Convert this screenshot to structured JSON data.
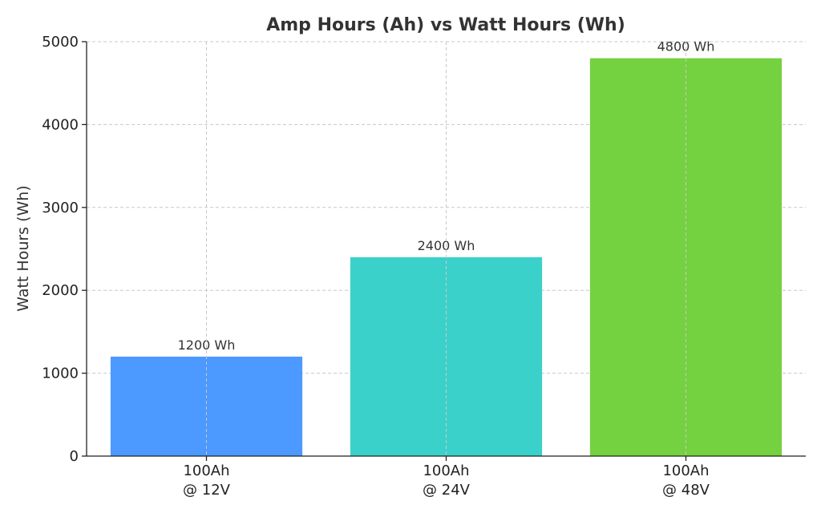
{
  "chart_data": {
    "type": "bar",
    "title": "Amp Hours (Ah) vs Watt Hours (Wh)",
    "xlabel": "",
    "ylabel": "Watt Hours (Wh)",
    "categories": [
      [
        "100Ah",
        "@ 12V"
      ],
      [
        "100Ah",
        "@ 24V"
      ],
      [
        "100Ah",
        "@ 48V"
      ]
    ],
    "values": [
      1200,
      2400,
      4800
    ],
    "value_labels": [
      "1200 Wh",
      "2400 Wh",
      "4800 Wh"
    ],
    "colors": [
      "#4c99ff",
      "#3bd1cb",
      "#74d13f"
    ],
    "ylim": [
      0,
      5000
    ],
    "yticks": [
      0,
      1000,
      2000,
      3000,
      4000,
      5000
    ],
    "grid": true,
    "legend": "none"
  }
}
